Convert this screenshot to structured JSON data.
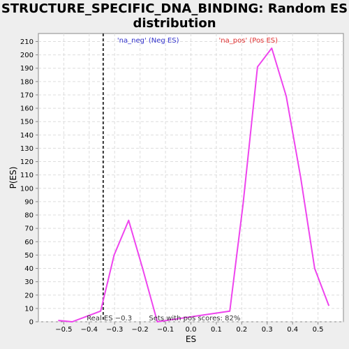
{
  "chart_data": {
    "type": "line",
    "title_line1": "STRUCTURE_SPECIFIC_DNA_BINDING: Random ES",
    "title_line2": "distribution",
    "xlabel": "ES",
    "ylabel": "P(ES)",
    "xlim": [
      -0.6,
      0.6
    ],
    "ylim": [
      0,
      216
    ],
    "x_ticks": [
      -0.5,
      -0.4,
      -0.3,
      -0.2,
      -0.1,
      0.0,
      0.1,
      0.2,
      0.3,
      0.4,
      0.5
    ],
    "x_tick_labels": [
      "−0.5",
      "−0.4",
      "−0.3",
      "−0.2",
      "−0.1",
      "0.0",
      "0.1",
      "0.2",
      "0.3",
      "0.4",
      "0.5"
    ],
    "y_ticks": [
      0,
      10,
      20,
      30,
      40,
      50,
      60,
      70,
      80,
      90,
      100,
      110,
      120,
      130,
      140,
      150,
      160,
      170,
      180,
      190,
      200,
      210
    ],
    "grid": true,
    "series": [
      {
        "color": "#ee44ee",
        "x": [
          -0.522,
          -0.467,
          -0.355,
          -0.302,
          -0.245,
          -0.19,
          -0.132,
          0.153,
          0.205,
          0.262,
          0.318,
          0.375,
          0.432,
          0.487,
          0.543
        ],
        "y": [
          1,
          0,
          8,
          50,
          76,
          40,
          0,
          8,
          88,
          191,
          205,
          169,
          108,
          40,
          12
        ]
      }
    ],
    "real_es": {
      "x": -0.345,
      "label": "Real ES −0.3",
      "color": "#333333"
    },
    "annotations": {
      "neg_label": "'na_neg' (Neg ES)",
      "neg_color": "#3333cc",
      "pos_label": "'na_pos' (Pos ES)",
      "pos_color": "#e03030",
      "pos_sets": "Sets with pos scores: 82%"
    },
    "colors": {
      "plot_bg": "#ffffff",
      "page_bg": "#eeeeee",
      "grid": "#dddddd",
      "axis": "#888888"
    }
  }
}
